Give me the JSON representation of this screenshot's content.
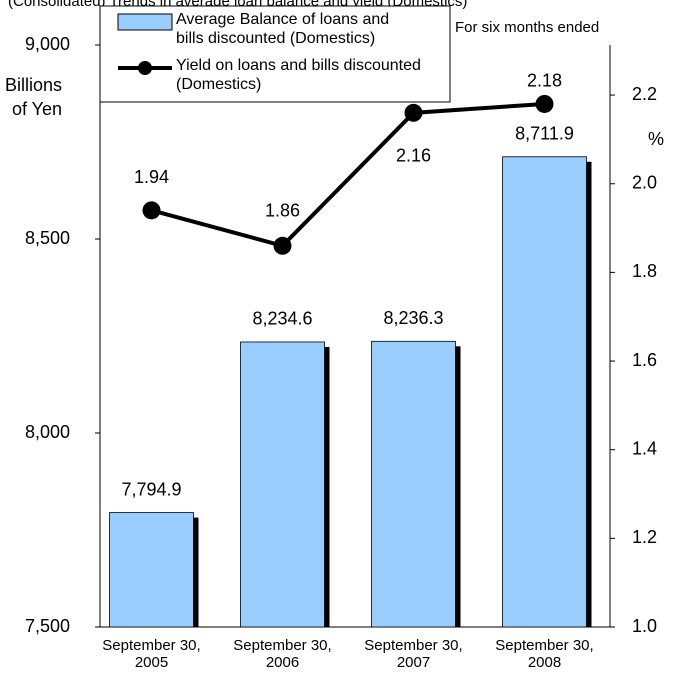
{
  "chart_data": {
    "type": "bar_line",
    "title": "(Consolidated) Trends in average loan balance and yield (Domestics)",
    "subtitle": "For six months ended",
    "y_label": "Billions of Yen",
    "y2_label": "%",
    "categories": [
      "September 30, 2005",
      "September 30, 2006",
      "September 30, 2007",
      "September 30, 2008"
    ],
    "series": [
      {
        "name": "Average Balance of loans and bills discounted (Domestics)",
        "type": "bar",
        "color": "#99ccff",
        "values": [
          7794.9,
          8234.6,
          8236.3,
          8711.9
        ],
        "value_labels": [
          "7,794.9",
          "8,234.6",
          "8,236.3",
          "8,711.9"
        ]
      },
      {
        "name": "Yield on loans and bills discounted (Domestics)",
        "type": "line",
        "color": "#000000",
        "axis": "y2",
        "values": [
          1.94,
          1.86,
          2.16,
          2.18
        ]
      }
    ],
    "ylim": [
      7500,
      9000
    ],
    "yticks": [
      {
        "value": 7500,
        "label": "7,500"
      },
      {
        "value": 8000,
        "label": "8,000"
      },
      {
        "value": 8500,
        "label": "8,500"
      },
      {
        "value": 9000,
        "label": "9,000"
      }
    ],
    "y2lim": [
      1.0,
      2.313
    ],
    "y2ticks": [
      {
        "value": 1.0,
        "label": "1.0"
      },
      1.2,
      1.4,
      1.6,
      1.8,
      {
        "value": 2.0,
        "label": "2.0"
      },
      2.2
    ],
    "grid": false
  }
}
